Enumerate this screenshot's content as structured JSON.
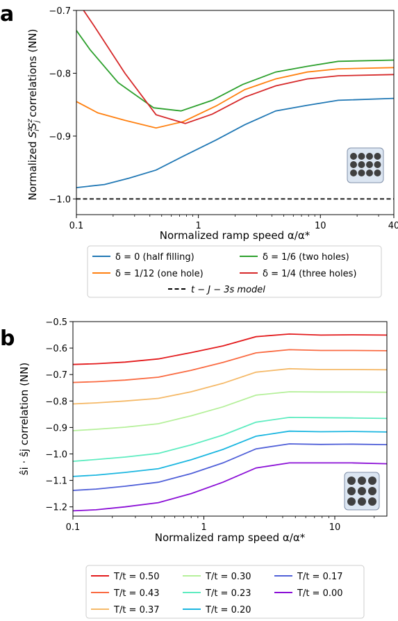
{
  "chart_data": [
    {
      "panel_label": "a",
      "type": "line",
      "xscale": "log",
      "xlim": [
        0.1,
        40
      ],
      "ylim": [
        -1.025,
        -0.7
      ],
      "xticks": [
        "0.1",
        "1",
        "10",
        "40"
      ],
      "xtick_values": [
        0.1,
        1,
        10,
        40
      ],
      "yticks": [
        "−0.7",
        "−0.8",
        "−0.9",
        "−1.0"
      ],
      "ytick_values": [
        -0.7,
        -0.8,
        -0.9,
        -1.0
      ],
      "xlabel": "Normalized ramp speed α/α*",
      "ylabel_prefix": "Normalized ",
      "ylabel_suffix": " correlations (NN)",
      "series": [
        {
          "name": "δ = 0 (half filling)",
          "color": "#1f77b4",
          "x": [
            0.1,
            0.17,
            0.27,
            0.45,
            0.75,
            1.4,
            2.4,
            4.3,
            7.8,
            14,
            40
          ],
          "y": [
            -0.982,
            -0.977,
            -0.967,
            -0.954,
            -0.932,
            -0.906,
            -0.882,
            -0.86,
            -0.851,
            -0.843,
            -0.84
          ]
        },
        {
          "name": "δ = 1/12 (one hole)",
          "color": "#ff7f0e",
          "x": [
            0.1,
            0.15,
            0.25,
            0.45,
            0.75,
            1.4,
            2.4,
            4.3,
            7.8,
            14,
            40
          ],
          "y": [
            -0.845,
            -0.863,
            -0.875,
            -0.887,
            -0.877,
            -0.852,
            -0.826,
            -0.809,
            -0.798,
            -0.793,
            -0.791
          ]
        },
        {
          "name": "δ = 1/6 (two holes)",
          "color": "#2ca02c",
          "x": [
            0.1,
            0.13,
            0.22,
            0.43,
            0.72,
            1.3,
            2.3,
            4.3,
            7.8,
            14,
            40
          ],
          "y": [
            -0.732,
            -0.763,
            -0.815,
            -0.855,
            -0.86,
            -0.843,
            -0.818,
            -0.798,
            -0.789,
            -0.781,
            -0.779
          ]
        },
        {
          "name": "δ = 1/4 (three holes)",
          "color": "#d62728",
          "x": [
            0.11,
            0.14,
            0.25,
            0.45,
            0.78,
            1.3,
            2.4,
            4.3,
            7.8,
            14,
            40
          ],
          "y": [
            -0.695,
            -0.725,
            -0.8,
            -0.866,
            -0.88,
            -0.865,
            -0.838,
            -0.82,
            -0.809,
            -0.804,
            -0.802
          ]
        }
      ],
      "reference_line": {
        "name": "t − J − 3s model",
        "y": -1.0,
        "style": "dashed",
        "color": "#000000"
      }
    },
    {
      "panel_label": "b",
      "type": "line",
      "xscale": "log",
      "xlim": [
        0.1,
        25
      ],
      "ylim": [
        -1.235,
        -0.5
      ],
      "xticks": [
        "0.1",
        "1",
        "10"
      ],
      "xtick_values": [
        0.1,
        1,
        10
      ],
      "yticks": [
        "−0.5",
        "−0.6",
        "−0.7",
        "−0.8",
        "−0.9",
        "−1.0",
        "−1.1",
        "−1.2"
      ],
      "ytick_values": [
        -0.5,
        -0.6,
        -0.7,
        -0.8,
        -0.9,
        -1.0,
        -1.1,
        -1.2
      ],
      "xlabel": "Normalized ramp speed α/α*",
      "ylabel": "ŝi · ŝj correlation (NN)",
      "x": [
        0.1,
        0.15,
        0.25,
        0.45,
        0.8,
        1.4,
        2.5,
        4.5,
        7.8,
        13.5,
        25
      ],
      "series": [
        {
          "name": "T/t = 0.50",
          "color": "#e31a1c",
          "y": [
            -0.662,
            -0.659,
            -0.653,
            -0.641,
            -0.617,
            -0.592,
            -0.557,
            -0.547,
            -0.551,
            -0.55,
            -0.551
          ]
        },
        {
          "name": "T/t = 0.43",
          "color": "#fa6a41",
          "y": [
            -0.73,
            -0.727,
            -0.721,
            -0.71,
            -0.684,
            -0.654,
            -0.618,
            -0.606,
            -0.609,
            -0.609,
            -0.61
          ]
        },
        {
          "name": "T/t = 0.37",
          "color": "#f5b968",
          "y": [
            -0.811,
            -0.807,
            -0.8,
            -0.79,
            -0.765,
            -0.733,
            -0.691,
            -0.678,
            -0.681,
            -0.681,
            -0.682
          ]
        },
        {
          "name": "T/t = 0.30",
          "color": "#b5f09a",
          "y": [
            -0.912,
            -0.907,
            -0.899,
            -0.886,
            -0.856,
            -0.822,
            -0.778,
            -0.765,
            -0.766,
            -0.766,
            -0.767
          ]
        },
        {
          "name": "T/t = 0.23",
          "color": "#5eecc0",
          "y": [
            -1.028,
            -1.021,
            -1.012,
            -0.998,
            -0.966,
            -0.929,
            -0.88,
            -0.862,
            -0.863,
            -0.864,
            -0.866
          ]
        },
        {
          "name": "T/t = 0.20",
          "color": "#1ab6e0",
          "y": [
            -1.085,
            -1.08,
            -1.07,
            -1.056,
            -1.022,
            -0.983,
            -0.933,
            -0.914,
            -0.916,
            -0.915,
            -0.917
          ]
        },
        {
          "name": "T/t = 0.17",
          "color": "#4f5fd8",
          "y": [
            -1.138,
            -1.133,
            -1.122,
            -1.107,
            -1.074,
            -1.034,
            -0.981,
            -0.962,
            -0.964,
            -0.963,
            -0.965
          ]
        },
        {
          "name": "T/t = 0.00",
          "color": "#8a0ed6",
          "y": [
            -1.215,
            -1.211,
            -1.2,
            -1.184,
            -1.15,
            -1.107,
            -1.053,
            -1.034,
            -1.034,
            -1.034,
            -1.037
          ]
        }
      ]
    }
  ]
}
